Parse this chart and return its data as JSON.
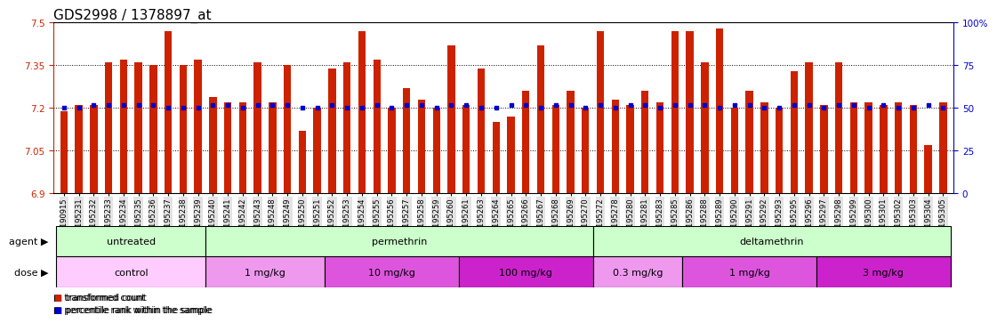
{
  "title": "GDS2998 / 1378897_at",
  "samples": [
    "GSM190915",
    "GSM195231",
    "GSM195232",
    "GSM195233",
    "GSM195234",
    "GSM195235",
    "GSM195236",
    "GSM195237",
    "GSM195238",
    "GSM195239",
    "GSM195240",
    "GSM195241",
    "GSM195242",
    "GSM195243",
    "GSM195248",
    "GSM195249",
    "GSM195250",
    "GSM195251",
    "GSM195252",
    "GSM195253",
    "GSM195254",
    "GSM195255",
    "GSM195256",
    "GSM195257",
    "GSM195258",
    "GSM195259",
    "GSM195260",
    "GSM195261",
    "GSM195263",
    "GSM195264",
    "GSM195265",
    "GSM195266",
    "GSM195267",
    "GSM195268",
    "GSM195269",
    "GSM195270",
    "GSM195272",
    "GSM195278",
    "GSM195280",
    "GSM195281",
    "GSM195283",
    "GSM195285",
    "GSM195286",
    "GSM195288",
    "GSM195289",
    "GSM195290",
    "GSM195291",
    "GSM195292",
    "GSM195293",
    "GSM195295",
    "GSM195296",
    "GSM195297",
    "GSM195298",
    "GSM195299",
    "GSM195300",
    "GSM195301",
    "GSM195302",
    "GSM195303",
    "GSM195304",
    "GSM195305"
  ],
  "bar_values": [
    7.19,
    7.21,
    7.21,
    7.36,
    7.37,
    7.36,
    7.35,
    7.47,
    7.35,
    7.37,
    7.24,
    7.22,
    7.22,
    7.36,
    7.22,
    7.35,
    7.12,
    7.2,
    7.34,
    7.36,
    7.47,
    7.37,
    7.2,
    7.27,
    7.23,
    7.2,
    7.42,
    7.21,
    7.34,
    7.15,
    7.17,
    7.26,
    7.42,
    7.21,
    7.26,
    7.2,
    7.47,
    7.23,
    7.21,
    7.26,
    7.22,
    7.47,
    7.47,
    7.36,
    7.48,
    7.2,
    7.26,
    7.22,
    7.2,
    7.33,
    7.36,
    7.21,
    7.36,
    7.22,
    7.22,
    7.21,
    7.22,
    7.21,
    7.07,
    7.22
  ],
  "percentile_values": [
    7.2,
    7.2,
    7.21,
    7.21,
    7.21,
    7.21,
    7.21,
    7.2,
    7.2,
    7.2,
    7.21,
    7.21,
    7.2,
    7.21,
    7.21,
    7.21,
    7.2,
    7.2,
    7.21,
    7.2,
    7.2,
    7.21,
    7.2,
    7.21,
    7.21,
    7.2,
    7.21,
    7.21,
    7.2,
    7.2,
    7.21,
    7.21,
    7.2,
    7.21,
    7.21,
    7.2,
    7.21,
    7.2,
    7.21,
    7.21,
    7.2,
    7.21,
    7.21,
    7.21,
    7.2,
    7.21,
    7.21,
    7.2,
    7.2,
    7.21,
    7.21,
    7.2,
    7.21,
    7.21,
    7.2,
    7.21,
    7.2,
    7.2,
    7.21,
    7.2
  ],
  "y_min": 6.9,
  "y_max": 7.5,
  "y_ticks": [
    6.9,
    7.05,
    7.2,
    7.35,
    7.5
  ],
  "right_y_ticks_labels": [
    "0",
    "25",
    "50",
    "75",
    "100%"
  ],
  "right_y_tick_positions": [
    6.9,
    7.05,
    7.2,
    7.35,
    7.5
  ],
  "bar_color": "#cc2200",
  "percentile_color": "#0000cc",
  "agent_groups": [
    {
      "label": "untreated",
      "start": 0,
      "end": 10,
      "color": "#ccffcc"
    },
    {
      "label": "permethrin",
      "start": 10,
      "end": 36,
      "color": "#ccffcc"
    },
    {
      "label": "deltamethrin",
      "start": 36,
      "end": 60,
      "color": "#ccffcc"
    }
  ],
  "dose_groups": [
    {
      "label": "control",
      "start": 0,
      "end": 10,
      "color": "#ffccff"
    },
    {
      "label": "1 mg/kg",
      "start": 10,
      "end": 18,
      "color": "#ee99ee"
    },
    {
      "label": "10 mg/kg",
      "start": 18,
      "end": 27,
      "color": "#dd55dd"
    },
    {
      "label": "100 mg/kg",
      "start": 27,
      "end": 36,
      "color": "#cc22cc"
    },
    {
      "label": "0.3 mg/kg",
      "start": 36,
      "end": 42,
      "color": "#ee99ee"
    },
    {
      "label": "1 mg/kg",
      "start": 42,
      "end": 51,
      "color": "#dd55dd"
    },
    {
      "label": "3 mg/kg",
      "start": 51,
      "end": 60,
      "color": "#cc22cc"
    }
  ],
  "title_fontsize": 11,
  "tick_fontsize": 7.5,
  "xtick_fontsize": 6,
  "label_fontsize": 8,
  "legend_items": [
    {
      "color": "#cc2200",
      "label": "transformed count"
    },
    {
      "color": "#0000cc",
      "label": "percentile rank within the sample"
    }
  ]
}
